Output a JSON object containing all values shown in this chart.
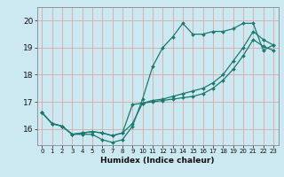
{
  "title": "",
  "xlabel": "Humidex (Indice chaleur)",
  "ylabel": "",
  "xlim": [
    -0.5,
    23.5
  ],
  "ylim": [
    15.4,
    20.5
  ],
  "xticks": [
    0,
    1,
    2,
    3,
    4,
    5,
    6,
    7,
    8,
    9,
    10,
    11,
    12,
    13,
    14,
    15,
    16,
    17,
    18,
    19,
    20,
    21,
    22,
    23
  ],
  "yticks": [
    16,
    17,
    18,
    19,
    20
  ],
  "bg_color": "#cce8f0",
  "grid_color": "#d9a8a8",
  "line_color": "#1a7a6e",
  "line1_y": [
    16.6,
    16.2,
    16.1,
    15.8,
    15.8,
    15.8,
    15.6,
    15.5,
    15.6,
    16.1,
    17.1,
    18.3,
    19.0,
    19.4,
    19.9,
    19.5,
    19.5,
    19.6,
    19.6,
    19.7,
    19.9,
    19.9,
    18.9,
    19.1
  ],
  "line2_y": [
    16.6,
    16.2,
    16.1,
    15.8,
    15.85,
    15.9,
    15.85,
    15.75,
    15.85,
    16.9,
    16.95,
    17.05,
    17.1,
    17.2,
    17.3,
    17.4,
    17.5,
    17.7,
    18.0,
    18.5,
    19.0,
    19.6,
    19.3,
    19.1
  ],
  "line3_y": [
    16.6,
    16.2,
    16.1,
    15.8,
    15.85,
    15.9,
    15.85,
    15.75,
    15.85,
    16.2,
    16.95,
    17.0,
    17.05,
    17.1,
    17.15,
    17.2,
    17.3,
    17.5,
    17.8,
    18.2,
    18.7,
    19.3,
    19.05,
    18.9
  ]
}
